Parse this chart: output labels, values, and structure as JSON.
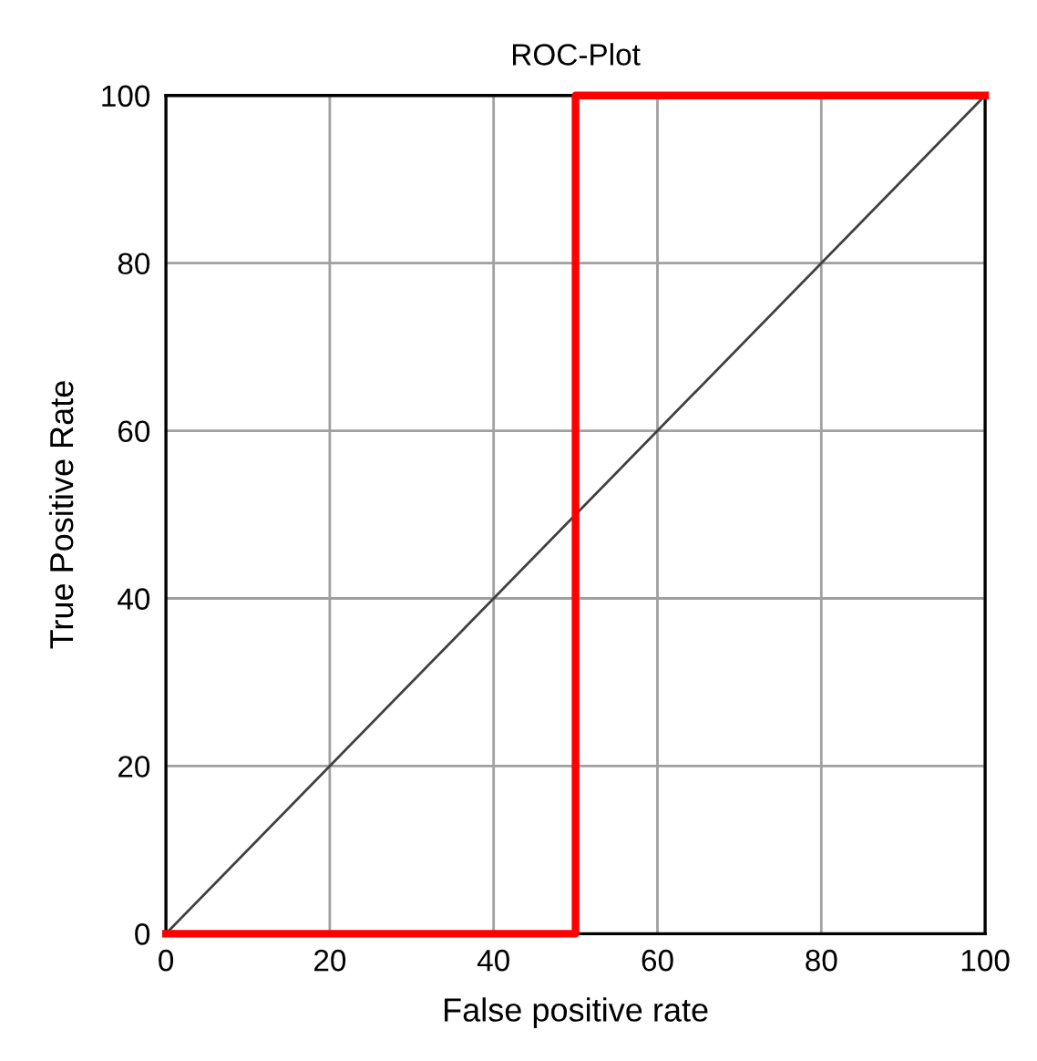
{
  "chart_data": {
    "type": "line",
    "title": "ROC-Plot",
    "xlabel": "False positive rate",
    "ylabel": "True Positive Rate",
    "series": [
      {
        "color": "#404040",
        "x": [
          0,
          100
        ],
        "values": [
          0,
          100
        ]
      },
      {
        "color": "#ff0000",
        "x": [
          0,
          50,
          50,
          100
        ],
        "values": [
          0,
          0,
          100,
          100
        ]
      }
    ],
    "xlim": [
      0,
      100
    ],
    "ylim": [
      0,
      100
    ],
    "xticks": [
      0,
      20,
      40,
      60,
      80,
      100
    ],
    "yticks": [
      0,
      20,
      40,
      60,
      80,
      100
    ],
    "grid": true,
    "marker": "none",
    "line_style": "solid"
  }
}
